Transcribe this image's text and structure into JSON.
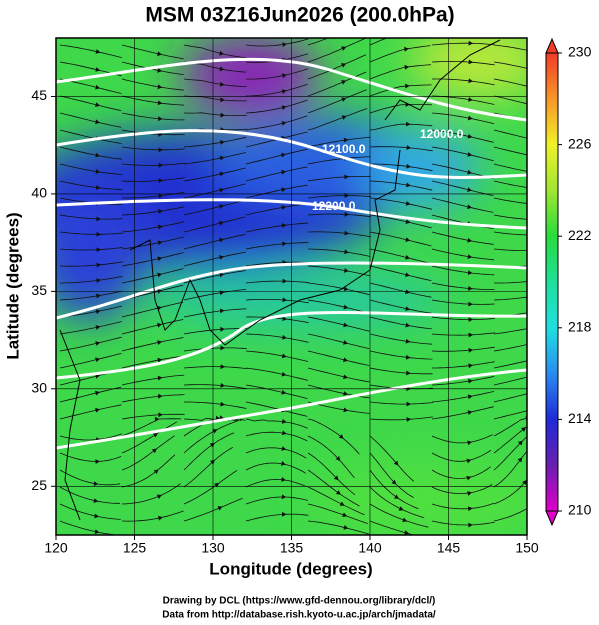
{
  "chart_data": {
    "type": "map",
    "title": "MSM 03Z16Jun2026 (200.0hPa)",
    "xlabel": "Longitude (degrees)",
    "ylabel": "Latitude  (degrees)",
    "xlim": [
      120,
      150
    ],
    "ylim": [
      22.5,
      48
    ],
    "xticks": [
      120,
      125,
      130,
      135,
      140,
      145,
      150
    ],
    "yticks": [
      25,
      30,
      35,
      40,
      45
    ],
    "grid": true,
    "colorbar": {
      "range": [
        210,
        230
      ],
      "ticks": [
        210,
        214,
        218,
        222,
        226,
        230
      ]
    },
    "contour_labels": [
      "12000.0",
      "12100.0",
      "12200.0"
    ],
    "footer": [
      "Drawing by DCL (https://www.gfd-dennou.org/library/dcl/)",
      "Data from http://database.rish.kyoto-u.ac.jp/arch/jmadata/"
    ]
  }
}
